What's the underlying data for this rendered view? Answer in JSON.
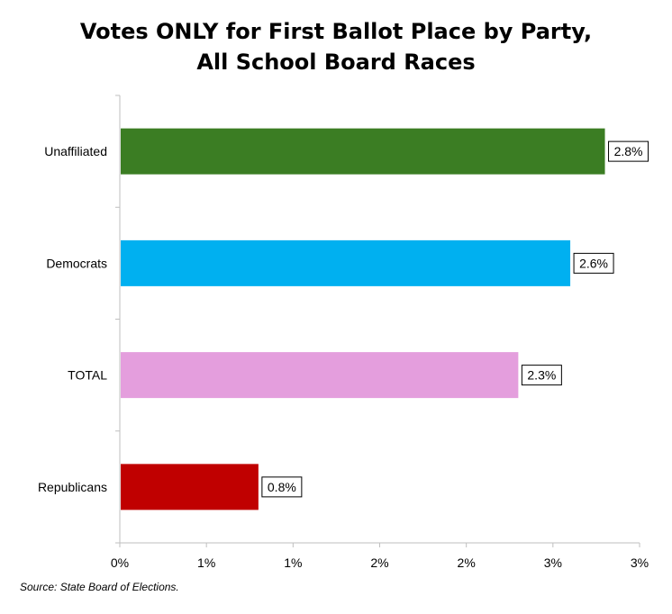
{
  "chart_data": {
    "type": "bar",
    "orientation": "horizontal",
    "title_lines": [
      "Votes ONLY for First Ballot Place by Party,",
      "All School Board Races"
    ],
    "categories": [
      "Unaffiliated",
      "Democrats",
      "TOTAL",
      "Republicans"
    ],
    "values": [
      2.8,
      2.6,
      2.3,
      0.8
    ],
    "value_labels": [
      "2.8%",
      "2.6%",
      "2.3%",
      "0.8%"
    ],
    "bar_colors": [
      "#3b7d23",
      "#00b0f0",
      "#e49edd",
      "#c00000"
    ],
    "x_ticks": [
      0,
      0.5,
      1,
      1.5,
      2,
      2.5,
      3
    ],
    "x_tick_labels": [
      "0%",
      "1%",
      "1%",
      "2%",
      "2%",
      "3%",
      "3%"
    ],
    "xlim": [
      0,
      3
    ],
    "xlabel": "",
    "ylabel": "",
    "grid": false,
    "legend": "none"
  },
  "source_note": "Source: State Board of Elections."
}
